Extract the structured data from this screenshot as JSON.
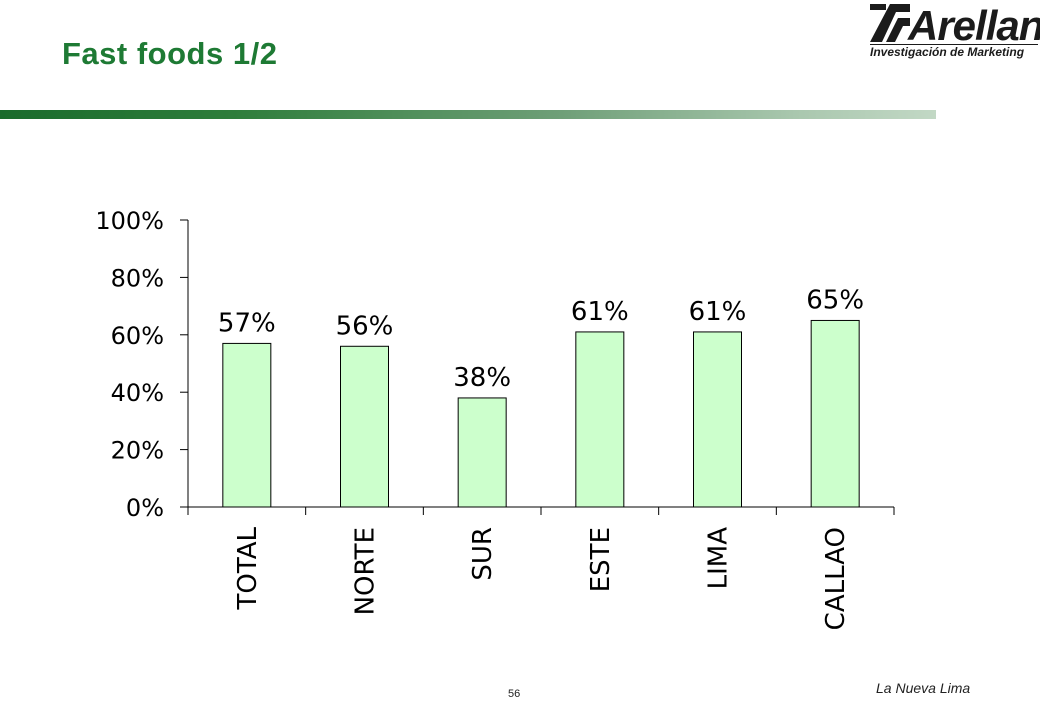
{
  "header": {
    "title": "Fast foods 1/2"
  },
  "logo": {
    "wordmark": "Arellano",
    "tagline": "Investigación de Marketing"
  },
  "footer": {
    "page_number": "56",
    "label": "La Nueva Lima"
  },
  "colors": {
    "title": "#1e7a34",
    "bar_fill": "#ccffcc",
    "bar_stroke": "#000000"
  },
  "chart_data": {
    "type": "bar",
    "categories": [
      "TOTAL",
      "NORTE",
      "SUR",
      "ESTE",
      "LIMA",
      "CALLAO"
    ],
    "values": [
      57,
      56,
      38,
      61,
      61,
      65
    ],
    "data_labels": [
      "57%",
      "56%",
      "38%",
      "61%",
      "61%",
      "65%"
    ],
    "ylim": [
      0,
      100
    ],
    "yticks": [
      0,
      20,
      40,
      60,
      80,
      100
    ],
    "ytick_labels": [
      "0%",
      "20%",
      "40%",
      "60%",
      "80%",
      "100%"
    ],
    "grid": false,
    "legend": "none",
    "title": "",
    "xlabel": "",
    "ylabel": ""
  }
}
